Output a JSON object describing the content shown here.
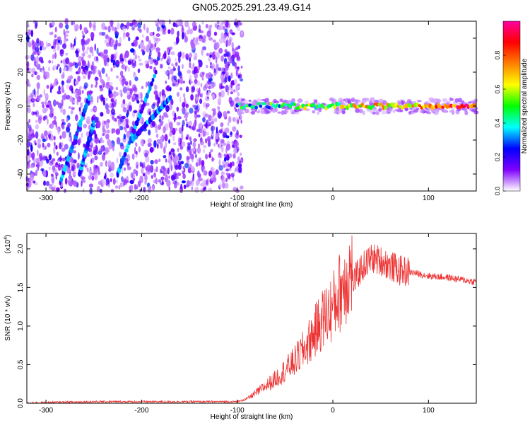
{
  "title": "GN05.2025.291.23.49.G14",
  "chart_data": [
    {
      "type": "heatmap",
      "xlabel": "Height of straight line (km)",
      "ylabel": "Frequency (Hz)",
      "xlim": [
        -320,
        150
      ],
      "ylim": [
        -50,
        50
      ],
      "xticks": [
        -300,
        -200,
        -100,
        0,
        100
      ],
      "yticks": [
        -40,
        -20,
        0,
        20,
        40
      ],
      "noise_region": [
        -320,
        -95
      ],
      "signal_band": {
        "x_start": -100,
        "x_end": 150,
        "frequency": 0
      },
      "streaks": [
        {
          "x": [
            -285,
            -255
          ],
          "y": [
            -45,
            5
          ]
        },
        {
          "x": [
            -265,
            -250
          ],
          "y": [
            -40,
            -10
          ]
        },
        {
          "x": [
            -225,
            -185
          ],
          "y": [
            -40,
            20
          ]
        },
        {
          "x": [
            -210,
            -170
          ],
          "y": [
            -20,
            5
          ]
        }
      ],
      "colorbar": {
        "label": "Normalized spectral amplitude",
        "range": [
          0,
          1
        ],
        "ticks": [
          0.0,
          0.2,
          0.4,
          0.6,
          0.8
        ],
        "colors": [
          "#ffffff",
          "#8000ff",
          "#0000ff",
          "#00ffff",
          "#00ff00",
          "#ffff00",
          "#ff8000",
          "#ff0000",
          "#ff00a0"
        ]
      }
    },
    {
      "type": "line",
      "xlabel": "Height of straight line (km)",
      "ylabel": "SNR (10 * v/v)",
      "yscale_label": "(x10",
      "yscale_exp": "4",
      "xlim": [
        -320,
        150
      ],
      "ylim": [
        0,
        2.2
      ],
      "xticks": [
        -300,
        -200,
        -100,
        0,
        100
      ],
      "yticks": [
        0.0,
        0.5,
        1.0,
        1.5,
        2.0
      ],
      "series": [
        {
          "name": "SNR",
          "color": "#ee3333",
          "x": [
            -320,
            -300,
            -250,
            -200,
            -150,
            -110,
            -100,
            -90,
            -80,
            -70,
            -60,
            -50,
            -40,
            -30,
            -20,
            -10,
            0,
            10,
            20,
            30,
            40,
            50,
            60,
            70,
            80,
            100,
            120,
            150
          ],
          "y": [
            0.0,
            0.01,
            0.02,
            0.02,
            0.02,
            0.02,
            0.02,
            0.05,
            0.12,
            0.2,
            0.28,
            0.38,
            0.48,
            0.62,
            0.8,
            0.98,
            1.1,
            1.35,
            1.55,
            1.75,
            1.88,
            1.85,
            1.78,
            1.72,
            1.7,
            1.65,
            1.63,
            1.57
          ]
        }
      ]
    }
  ]
}
